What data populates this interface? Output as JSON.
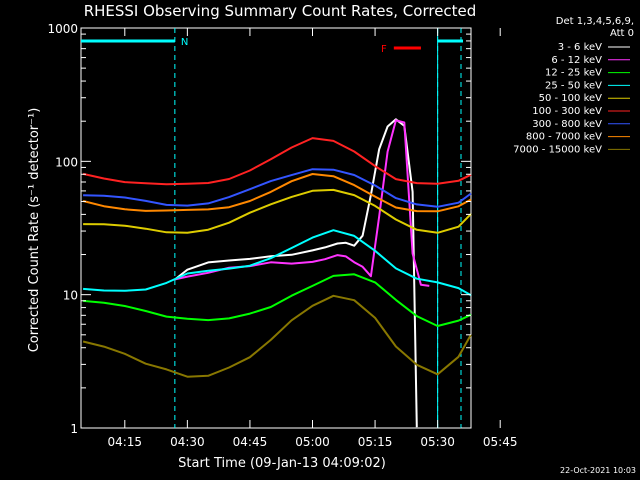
{
  "chart_data": {
    "type": "line",
    "title": "RHESSI Observing Summary Count Rates, Corrected",
    "xlabel": "Start Time (09-Jan-13 04:09:02)",
    "ylabel": "Corrected Count Rate (s⁻¹ detector⁻¹)",
    "y_scale": "log",
    "ylim": [
      1,
      1000
    ],
    "xlim_minutes": [
      4.5,
      98.0
    ],
    "x_ticks": [
      {
        "label": "04:15",
        "minute": 15
      },
      {
        "label": "04:30",
        "minute": 30
      },
      {
        "label": "04:45",
        "minute": 45
      },
      {
        "label": "05:00",
        "minute": 60
      },
      {
        "label": "05:15",
        "minute": 75
      },
      {
        "label": "05:30",
        "minute": 90
      },
      {
        "label": "05:45",
        "minute": 105
      }
    ],
    "y_ticks": [
      {
        "label": "1",
        "value": 1
      },
      {
        "label": "10",
        "value": 10
      },
      {
        "label": "100",
        "value": 100
      },
      {
        "label": "1000",
        "value": 1000
      }
    ],
    "legend_header": [
      "Det 1,3,4,5,6,9,",
      "Att 0"
    ],
    "legend_position": "right",
    "series": [
      {
        "name": "3 - 6 keV",
        "color": "#ffffff",
        "x": [
          27,
          30,
          35,
          40,
          45,
          50,
          55,
          60,
          63,
          66,
          68,
          70,
          72,
          74,
          76,
          78,
          80,
          82,
          84,
          85
        ],
        "y": [
          13,
          15,
          17,
          18,
          19,
          20,
          20,
          21,
          22,
          24,
          25,
          24,
          28,
          55,
          120,
          180,
          210,
          190,
          60,
          1
        ]
      },
      {
        "name": "6 - 12 keV",
        "color": "#ff33ff",
        "x": [
          27,
          30,
          35,
          40,
          45,
          50,
          55,
          60,
          63,
          66,
          68,
          70,
          72,
          74,
          76,
          78,
          80,
          82,
          84,
          86,
          88
        ],
        "y": [
          13,
          14,
          15,
          16,
          16,
          17,
          17,
          18,
          19,
          20,
          19,
          17,
          16,
          14,
          40,
          120,
          200,
          190,
          20,
          12,
          12
        ]
      },
      {
        "name": "12 - 25 keV",
        "color": "#00ff00",
        "x": [
          5,
          10,
          15,
          20,
          25,
          30,
          35,
          40,
          45,
          50,
          55,
          60,
          65,
          70,
          75,
          80,
          85,
          90,
          95,
          98
        ],
        "y": [
          9,
          8.5,
          8,
          7.5,
          7,
          6.8,
          6.5,
          6.5,
          7,
          8,
          10,
          12,
          14,
          14,
          12,
          9,
          7,
          6,
          6.5,
          7
        ]
      },
      {
        "name": "25 - 50 keV",
        "color": "#00ffff",
        "x": [
          5,
          10,
          15,
          20,
          25,
          30,
          35,
          40,
          45,
          50,
          55,
          60,
          65,
          70,
          75,
          80,
          85,
          90,
          95,
          98
        ],
        "y": [
          11,
          11,
          11,
          11,
          12,
          14,
          15,
          16,
          17,
          19,
          22,
          26,
          30,
          28,
          22,
          16,
          13,
          12,
          11,
          10
        ]
      },
      {
        "name": "50 - 100 keV",
        "color": "#ddcc00",
        "x": [
          5,
          10,
          15,
          20,
          25,
          30,
          35,
          40,
          45,
          50,
          55,
          60,
          65,
          70,
          75,
          80,
          85,
          90,
          95,
          98
        ],
        "y": [
          34,
          33,
          32,
          31,
          30,
          30,
          31,
          34,
          40,
          47,
          55,
          62,
          62,
          55,
          45,
          36,
          31,
          30,
          33,
          40
        ]
      },
      {
        "name": "100 - 300 keV",
        "color": "#ff2222",
        "x": [
          5,
          10,
          15,
          20,
          25,
          30,
          35,
          40,
          45,
          50,
          55,
          60,
          65,
          70,
          75,
          80,
          85,
          90,
          95,
          98
        ],
        "y": [
          80,
          76,
          72,
          69,
          66,
          66,
          68,
          75,
          88,
          105,
          125,
          145,
          140,
          120,
          95,
          75,
          68,
          66,
          70,
          80
        ]
      },
      {
        "name": "300 - 800 keV",
        "color": "#3355ff",
        "x": [
          5,
          10,
          15,
          20,
          25,
          30,
          35,
          40,
          45,
          50,
          55,
          60,
          65,
          70,
          75,
          80,
          85,
          90,
          95,
          98
        ],
        "y": [
          56,
          54,
          52,
          50,
          48,
          48,
          49,
          53,
          60,
          70,
          80,
          90,
          88,
          78,
          64,
          52,
          48,
          47,
          50,
          57
        ]
      },
      {
        "name": "800 - 7000 keV",
        "color": "#ff8800",
        "x": [
          5,
          10,
          15,
          20,
          25,
          30,
          35,
          40,
          45,
          50,
          55,
          60,
          65,
          70,
          75,
          80,
          85,
          90,
          95,
          98
        ],
        "y": [
          50,
          47,
          45,
          43,
          42,
          42,
          43,
          46,
          52,
          60,
          70,
          78,
          76,
          67,
          56,
          46,
          42,
          41,
          45,
          52
        ]
      },
      {
        "name": "7000 - 15000 keV",
        "color": "#887700",
        "x": [
          5,
          10,
          15,
          20,
          25,
          30,
          35,
          40,
          45,
          50,
          55,
          60,
          65,
          70,
          75,
          80,
          85,
          90,
          95,
          98
        ],
        "y": [
          4.5,
          4,
          3.5,
          3,
          2.8,
          2.5,
          2.5,
          2.8,
          3.3,
          4.5,
          6.5,
          8.5,
          10,
          9,
          6.5,
          4,
          3,
          2.6,
          3.5,
          5
        ]
      }
    ],
    "annotations": [
      {
        "label": "N",
        "color": "#00ffff",
        "span": [
          4.5,
          27
        ]
      },
      {
        "label": "F",
        "color": "#ff0000",
        "span": [
          79.5,
          86
        ]
      }
    ],
    "interval_markers_minutes": [
      27,
      90,
      99.5
    ],
    "night_bar_after": [
      90,
      99.5
    ],
    "footer_date": "22-Oct-2021 10:03"
  }
}
